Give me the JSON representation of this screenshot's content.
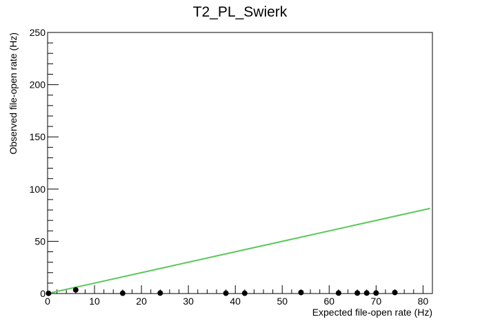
{
  "chart_data": {
    "type": "scatter",
    "title": "T2_PL_Swierk",
    "xlabel": "Expected file-open rate (Hz)",
    "ylabel": "Observed file-open rate (Hz)",
    "xlim": [
      0,
      82
    ],
    "ylim": [
      0,
      250
    ],
    "x_ticks": [
      0,
      10,
      20,
      30,
      40,
      50,
      60,
      70,
      80
    ],
    "y_ticks": [
      0,
      50,
      100,
      150,
      200,
      250
    ],
    "grid": false,
    "legend": "none",
    "series": [
      {
        "type": "scatter",
        "color": "#000000",
        "points": [
          {
            "x": 0.2,
            "y": 0.2
          },
          {
            "x": 6.0,
            "y": 3.5
          },
          {
            "x": 16.0,
            "y": 0.3
          },
          {
            "x": 24.0,
            "y": 0.5
          },
          {
            "x": 38.0,
            "y": 0.3
          },
          {
            "x": 42.0,
            "y": 0.3
          },
          {
            "x": 54.0,
            "y": 1.0
          },
          {
            "x": 62.0,
            "y": 0.5
          },
          {
            "x": 66.0,
            "y": 0.5
          },
          {
            "x": 68.0,
            "y": 0.5
          },
          {
            "x": 70.0,
            "y": 0.5
          },
          {
            "x": 74.0,
            "y": 1.0
          }
        ]
      },
      {
        "type": "line",
        "color": "#5ac85a",
        "points": [
          {
            "x": 0,
            "y": 0
          },
          {
            "x": 81.5,
            "y": 81.5
          }
        ]
      }
    ]
  }
}
